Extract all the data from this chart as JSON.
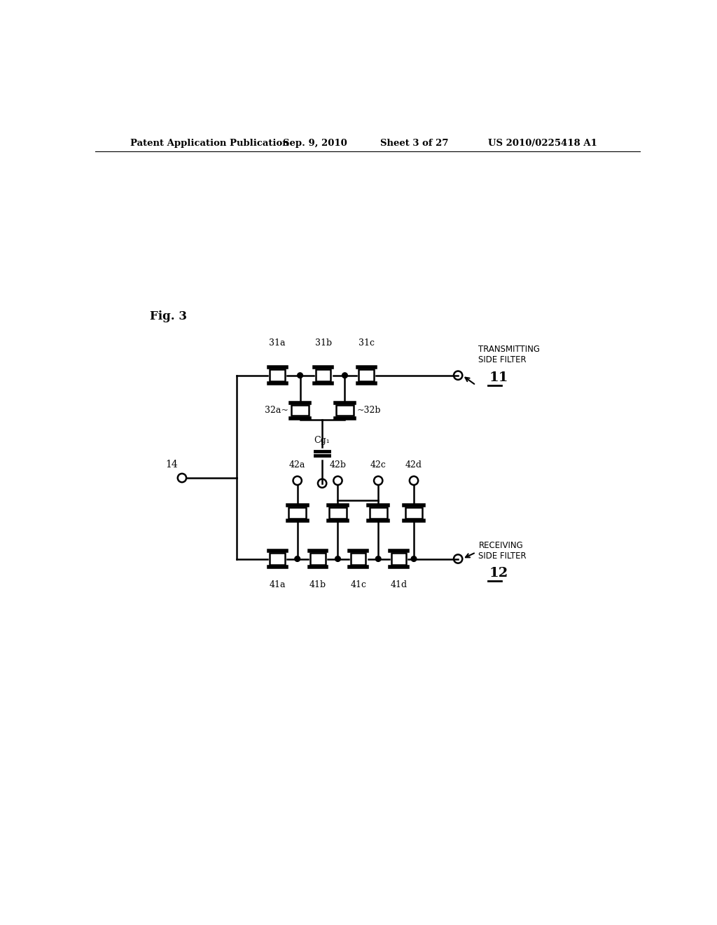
{
  "bg_color": "#ffffff",
  "title_text": "Patent Application Publication",
  "title_date": "Sep. 9, 2010",
  "title_sheet": "Sheet 3 of 27",
  "title_patent": "US 2010/0225418 A1",
  "fig_label": "Fig. 3",
  "transmitting_label": "TRANSMITTING\nSIDE FILTER",
  "transmitting_num": "11",
  "receiving_label": "RECEIVING\nSIDE FILTER",
  "receiving_num": "12",
  "node14_label": "14",
  "cg1_label": "Cg₁",
  "resonators_top": [
    "31a",
    "31b",
    "31c"
  ],
  "shunt_top": [
    "32a",
    "32b"
  ],
  "resonators_bot": [
    "41a",
    "41b",
    "41c",
    "41d"
  ],
  "shunt_bot": [
    "42a",
    "42b",
    "42c",
    "42d"
  ]
}
